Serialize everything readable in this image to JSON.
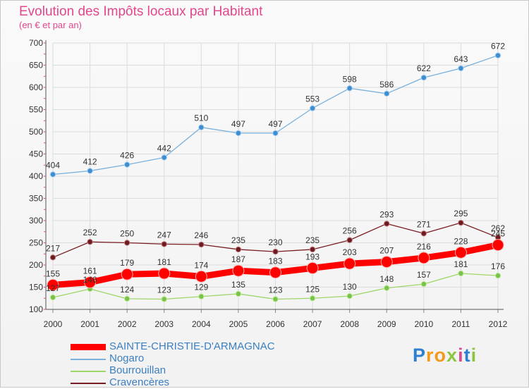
{
  "chart_title": "Evolution des Impôts locaux par Habitant",
  "chart_subtitle": "(en € et par an)",
  "logo_text": "Proxiti",
  "chart_data": {
    "type": "line",
    "title": "Evolution des Impôts locaux par Habitant",
    "subtitle": "(en € et par an)",
    "xlabel": "",
    "ylabel": "",
    "x": [
      "2000",
      "2001",
      "2002",
      "2003",
      "2004",
      "2005",
      "2006",
      "2007",
      "2008",
      "2009",
      "2010",
      "2011",
      "2012"
    ],
    "ylim": [
      100,
      700
    ],
    "yticks": [
      100,
      150,
      200,
      250,
      300,
      350,
      400,
      450,
      500,
      550,
      600,
      650,
      700
    ],
    "grid": true,
    "series": [
      {
        "name": "SAINTE-CHRISTIE-D'ARMAGNAC",
        "color": "#ff0000",
        "values": [
          155,
          161,
          179,
          181,
          174,
          187,
          183,
          193,
          203,
          207,
          216,
          228,
          245
        ]
      },
      {
        "name": "Nogaro",
        "color": "#7ab1dd",
        "values": [
          404,
          412,
          426,
          442,
          510,
          497,
          497,
          553,
          598,
          586,
          622,
          643,
          672
        ]
      },
      {
        "name": "Bourrouillan",
        "color": "#9ed66a",
        "values": [
          127,
          146,
          124,
          123,
          129,
          135,
          123,
          125,
          130,
          148,
          157,
          181,
          176
        ]
      },
      {
        "name": "Cravencères",
        "color": "#7a1e24",
        "values": [
          217,
          252,
          250,
          247,
          246,
          235,
          230,
          235,
          256,
          293,
          271,
          295,
          262
        ]
      }
    ]
  }
}
